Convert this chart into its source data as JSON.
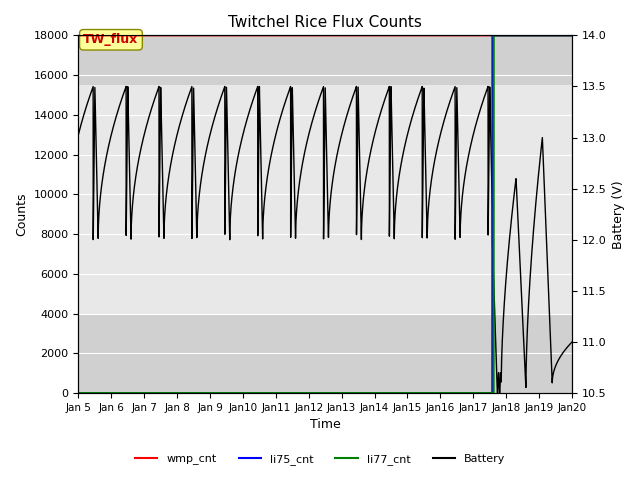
{
  "title": "Twitchel Rice Flux Counts",
  "xlabel": "Time",
  "ylabel_left": "Counts",
  "ylabel_right": "Battery (V)",
  "xlim_days": [
    5,
    20
  ],
  "ylim_left": [
    0,
    18000
  ],
  "ylim_right": [
    10.5,
    14.0
  ],
  "bg_color_light": "#e8e8e8",
  "bg_color_dark": "#d0d0d0",
  "annotation_text": "TW_flux",
  "annotation_color": "#cc0000",
  "annotation_bg": "#ffff99",
  "wmp_cnt_color": "red",
  "li75_cnt_color": "blue",
  "li77_cnt_color": "green",
  "battery_color": "black",
  "wmp_cnt_value": 18000,
  "v_min_osc": 12.0,
  "v_max_osc": 13.5,
  "period": 1.0,
  "num_cycles_start_day": 5.0,
  "jump_day": 17.58,
  "li75_jump": 17.58,
  "li77_jump": 17.62
}
